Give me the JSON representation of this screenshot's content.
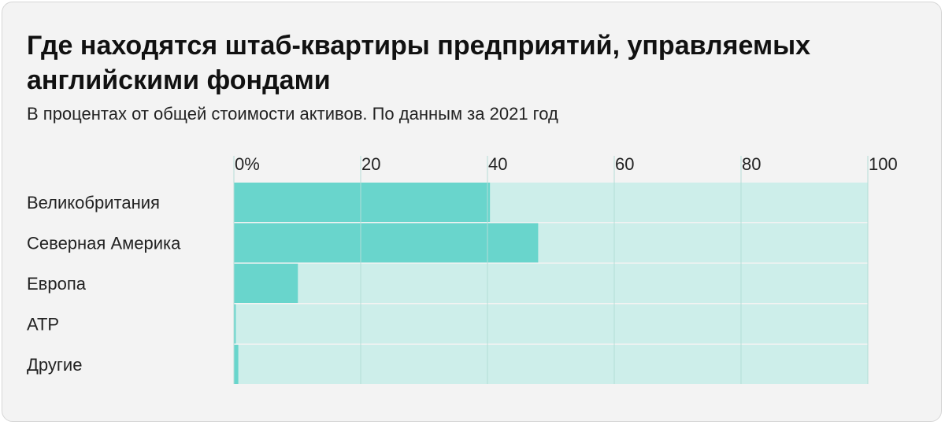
{
  "chart_data": {
    "type": "bar",
    "orientation": "horizontal",
    "stacked_to_100": true,
    "title": "Где находятся штаб-квартиры предприятий, управляемых английскими фондами",
    "subtitle": "В процентах от общей стоимости активов. По данным за 2021 год",
    "categories": [
      "Великобритания",
      "Северная Америка",
      "Европа",
      "АТР",
      "Другие"
    ],
    "values": [
      40.4,
      48.0,
      10.1,
      0.3,
      0.7
    ],
    "xlim": [
      0,
      100
    ],
    "xticks": [
      0,
      20,
      40,
      60,
      80,
      100
    ],
    "xtick_labels": [
      "0%",
      "20",
      "40",
      "60",
      "80",
      "100"
    ],
    "xaxis_position": "top",
    "grid": true,
    "legend": "none"
  },
  "colors": {
    "bar_fill": "#69d5cc",
    "bar_remainder": "#cdeeea",
    "gridline": "#b4ddd7",
    "background": "#f3f3f3"
  }
}
